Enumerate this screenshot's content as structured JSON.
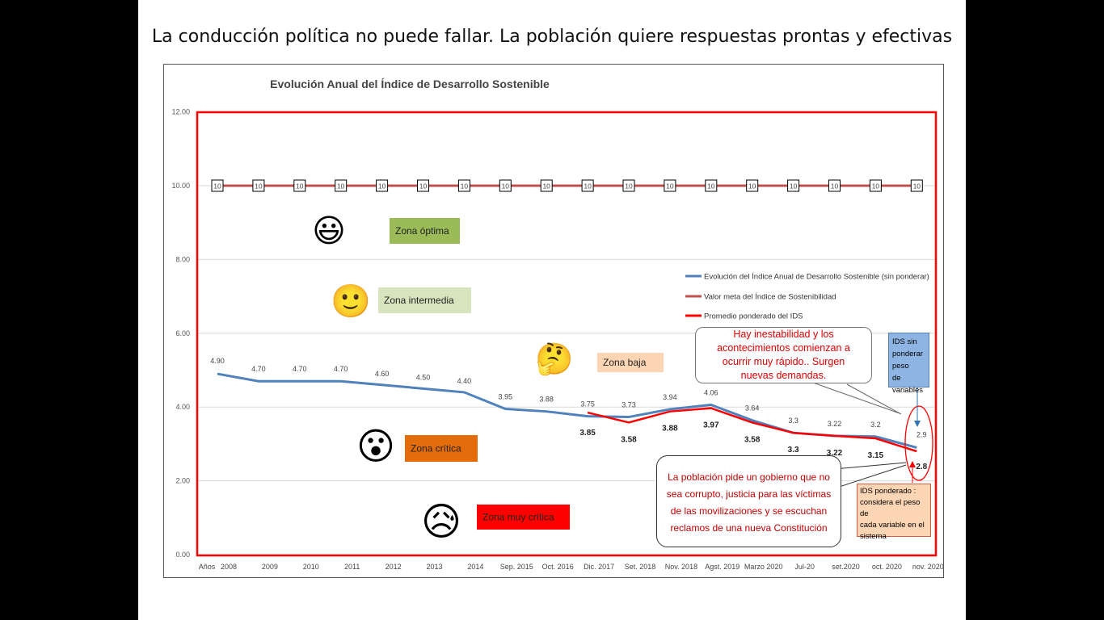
{
  "slide": {
    "title": "La conducción política no puede fallar. La población quiere respuestas prontas y efectivas"
  },
  "chart_data": {
    "type": "line",
    "title": "Evolución Anual del Índice de Desarrollo Sostenible",
    "xlabel": "",
    "ylabel": "",
    "categories": [
      "2008",
      "2009",
      "2010",
      "2011",
      "2012",
      "2013",
      "2014",
      "Sep. 2015",
      "Oct. 2016",
      "Dic. 2017",
      "Set. 2018",
      "Nov. 2018",
      "Agst. 2019",
      "Marzo 2020",
      "Jul-20",
      "set.2020",
      "oct. 2020",
      "nov. 2020"
    ],
    "axis_first_label": "Años",
    "ylim": [
      0,
      12
    ],
    "yticks": [
      "0.00",
      "2.00",
      "4.00",
      "6.00",
      "8.00",
      "10.00",
      "12.00"
    ],
    "grid": true,
    "legend_position": "right",
    "series": [
      {
        "name": "Evolución del Índice  Anual de Desarrollo Sostenible (sin ponderar)",
        "color": "#4f81bd",
        "values": [
          4.9,
          4.7,
          4.7,
          4.7,
          4.6,
          4.5,
          4.4,
          3.95,
          3.88,
          3.75,
          3.73,
          3.94,
          4.06,
          3.64,
          3.3,
          3.22,
          3.2,
          2.9
        ],
        "labels": [
          "4.90",
          "4.70",
          "4.70",
          "4.70",
          "4.60",
          "4.50",
          "4.40",
          "3.95",
          "3.88",
          "3.75",
          "3.73",
          "3.94",
          "4.06",
          "3.64",
          "3.3",
          "3.22",
          "3.2",
          "2.9"
        ]
      },
      {
        "name": "Valor meta  del Índice de  Sostenibilidad",
        "color": "#c0504d",
        "values": [
          10,
          10,
          10,
          10,
          10,
          10,
          10,
          10,
          10,
          10,
          10,
          10,
          10,
          10,
          10,
          10,
          10,
          10
        ],
        "labels": [
          "10",
          "10",
          "10",
          "10",
          "10",
          "10",
          "10",
          "10",
          "10",
          "10",
          "10",
          "10",
          "10",
          "10",
          "10",
          "10",
          "10",
          "10"
        ]
      },
      {
        "name": "Promedio ponderado del IDS",
        "color": "#ff0000",
        "start_index": 9,
        "values": [
          null,
          null,
          null,
          null,
          null,
          null,
          null,
          null,
          null,
          3.85,
          3.58,
          3.88,
          3.97,
          3.58,
          3.3,
          3.22,
          3.15,
          2.8
        ],
        "labels": [
          "",
          "",
          "",
          "",
          "",
          "",
          "",
          "",
          "",
          "3.85",
          "3.58",
          "3.88",
          "3.97",
          "3.58",
          "3.3",
          "3.22",
          "3.15",
          "2.8"
        ]
      }
    ],
    "zones": [
      {
        "label": "Zona óptima",
        "color": "#9bbb59",
        "emoji": "😃"
      },
      {
        "label": "Zona intermedia",
        "color": "#d7e4bd",
        "emoji": "🙂"
      },
      {
        "label": "Zona baja",
        "color": "#fcd5b4",
        "emoji": "🤔"
      },
      {
        "label": "Zona crítica",
        "color": "#e46c0a",
        "emoji": "😮"
      },
      {
        "label": "Zona muy crítica",
        "color": "#ff0000",
        "emoji": "😥"
      }
    ]
  },
  "callouts": {
    "top": [
      "Hay inestabilidad y los",
      "acontecimientos comienzan a",
      "ocurrir muy rápido.. Surgen",
      "nuevas demandas."
    ],
    "bottom": [
      "La población pide un gobierno  que no",
      "sea corrupto, justicia para las víctimas",
      "de las movilizaciones y se escuchan",
      "reclamos de una nueva Constitución"
    ],
    "ids_sin": [
      "IDS sin",
      "ponderar peso",
      "de variables"
    ],
    "ids_pond": [
      "IDS ponderado :",
      "considera el peso de",
      "cada variable en el",
      "sistema"
    ]
  }
}
